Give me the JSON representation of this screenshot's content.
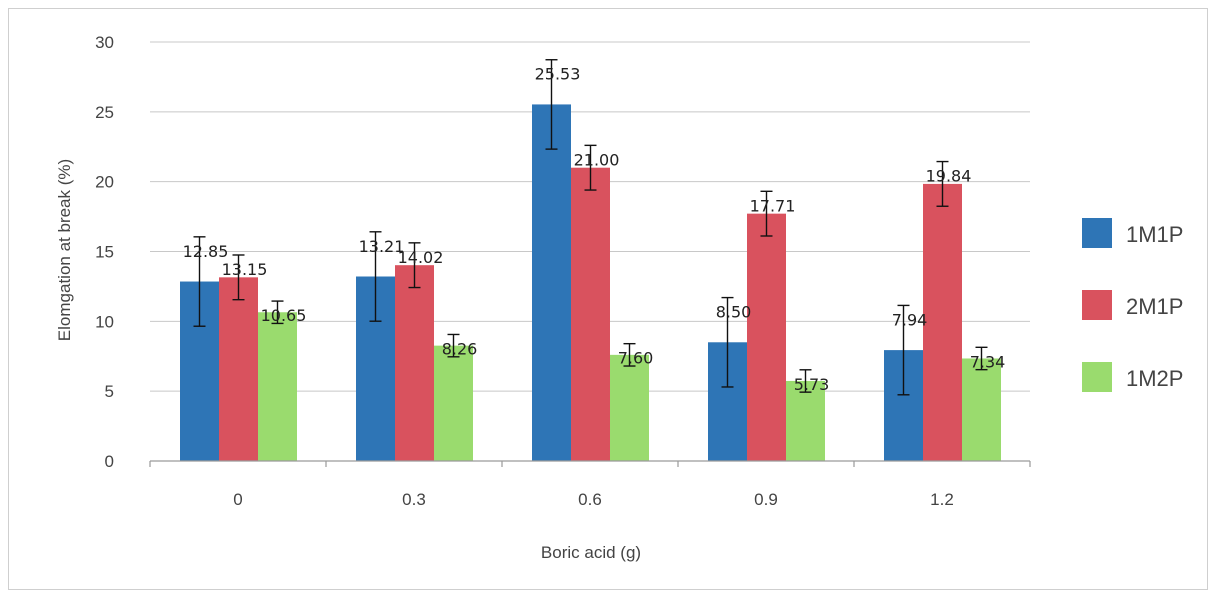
{
  "chart_data": {
    "type": "bar",
    "xlabel": "Boric acid (g)",
    "ylabel": "Elomgation at break (%)",
    "categories": [
      "0",
      "0.3",
      "0.6",
      "0.9",
      "1.2"
    ],
    "ylim": [
      0,
      30
    ],
    "yticks": [
      "0",
      "5",
      "10",
      "15",
      "20",
      "25",
      "30"
    ],
    "grid": true,
    "legend_position": "right",
    "series": [
      {
        "name": "1M1P",
        "color": "#2E75B6",
        "values": [
          12.85,
          13.21,
          25.53,
          8.5,
          7.94
        ],
        "labels": [
          "12.85",
          "13.21",
          "25.53",
          "8.50",
          "7.94"
        ],
        "error": [
          3.2,
          3.2,
          3.2,
          3.2,
          3.2
        ]
      },
      {
        "name": "2M1P",
        "color": "#D9525E",
        "values": [
          13.15,
          14.02,
          21.0,
          17.71,
          19.84
        ],
        "labels": [
          "13.15",
          "14.02",
          "21.00",
          "17.71",
          "19.84"
        ],
        "error": [
          1.6,
          1.6,
          1.6,
          1.6,
          1.6
        ]
      },
      {
        "name": "1M2P",
        "color": "#9ADB6E",
        "values": [
          10.65,
          8.26,
          7.6,
          5.73,
          7.34
        ],
        "labels": [
          "10.65",
          "8.26",
          "7.60",
          "5.73",
          "7.34"
        ],
        "error": [
          0.8,
          0.8,
          0.8,
          0.8,
          0.8
        ]
      }
    ]
  }
}
